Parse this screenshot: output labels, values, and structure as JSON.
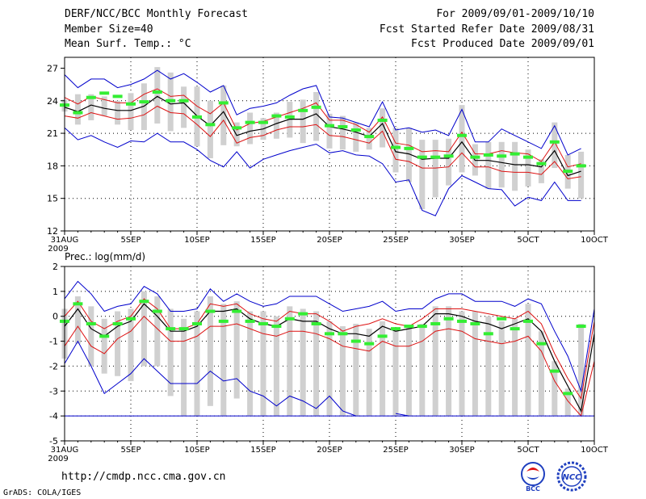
{
  "header": {
    "title": "DERF/NCC/BCC Monthly Forecast",
    "member": "Member Size=40",
    "variable": "Mean Surf. Temp.: °C",
    "period": "For 2009/09/01-2009/10/10",
    "started": "Fcst Started Refer Date 2009/08/31",
    "produced": "Fcst Produced Date 2009/09/01"
  },
  "footer": {
    "url": "http://cmdp.ncc.cma.gov.cn",
    "credit": "GrADS: COLA/IGES",
    "logo_bcc": "BCC",
    "logo_ncc": "NCC"
  },
  "colors": {
    "box": "#d0d0d0",
    "median": "#33ee33",
    "mean": "#000000",
    "std": "#dd1111",
    "envelope": "#0000cc",
    "grid": "#000000"
  },
  "chart_data": [
    {
      "type": "line",
      "title": "Mean Surf. Temp.",
      "ylim": [
        12,
        28
      ],
      "yticks": [
        12,
        15,
        18,
        21,
        24,
        27
      ],
      "xtick_labels": [
        "31AUG\n2009",
        "5SEP",
        "10SEP",
        "15SEP",
        "20SEP",
        "25SEP",
        "30SEP",
        "5OCT",
        "10OCT"
      ],
      "x_days": [
        0,
        1,
        2,
        3,
        4,
        5,
        6,
        7,
        8,
        9,
        10,
        11,
        12,
        13,
        14,
        15,
        16,
        17,
        18,
        19,
        20,
        21,
        22,
        23,
        24,
        25,
        26,
        27,
        28,
        29,
        30,
        31,
        32,
        33,
        34,
        35,
        36,
        37,
        38,
        39,
        40
      ],
      "series": [
        {
          "name": "envelope-max",
          "values": [
            26.4,
            25.2,
            26.0,
            26.0,
            25.2,
            25.5,
            26.0,
            26.8,
            26.0,
            26.5,
            25.7,
            24.8,
            25.4,
            22.7,
            23.3,
            23.5,
            23.8,
            24.5,
            25.1,
            25.4,
            22.5,
            22.4,
            22.0,
            21.6,
            23.9,
            21.3,
            21.5,
            21.1,
            21.3,
            20.8,
            23.2,
            20.2,
            20.2,
            21.4,
            20.8,
            20.2,
            19.6,
            21.7,
            19.0,
            19.6,
            null
          ]
        },
        {
          "name": "std-upper",
          "values": [
            24.3,
            23.7,
            24.4,
            24.1,
            23.8,
            23.8,
            24.6,
            25.1,
            24.4,
            24.5,
            23.5,
            22.8,
            23.8,
            21.3,
            21.9,
            22.1,
            22.5,
            22.9,
            23.3,
            23.8,
            22.2,
            22.2,
            21.8,
            21.1,
            22.5,
            20.1,
            19.9,
            19.3,
            19.4,
            19.3,
            21.1,
            19.1,
            19.1,
            19.4,
            19.2,
            19.1,
            18.4,
            20.2,
            17.9,
            18.2,
            null
          ]
        },
        {
          "name": "mean",
          "values": [
            23.4,
            23.0,
            23.6,
            23.3,
            23.1,
            23.1,
            23.5,
            24.4,
            23.7,
            23.8,
            22.6,
            21.7,
            23.0,
            20.8,
            21.2,
            21.4,
            21.9,
            22.3,
            22.3,
            22.8,
            21.6,
            21.4,
            21.1,
            20.7,
            21.9,
            19.3,
            19.1,
            18.6,
            18.7,
            18.7,
            20.2,
            18.5,
            18.5,
            18.3,
            18.1,
            18.1,
            17.9,
            19.4,
            17.1,
            17.5,
            null
          ]
        },
        {
          "name": "std-lower",
          "values": [
            22.6,
            22.4,
            22.9,
            22.6,
            22.3,
            22.4,
            22.7,
            23.5,
            22.9,
            22.8,
            21.8,
            20.7,
            22.2,
            20.1,
            20.6,
            20.8,
            21.3,
            21.6,
            21.6,
            21.8,
            20.8,
            20.7,
            20.4,
            20.1,
            21.2,
            18.6,
            18.4,
            17.8,
            17.8,
            17.9,
            19.2,
            17.9,
            17.9,
            17.5,
            17.4,
            17.4,
            17.2,
            18.4,
            16.8,
            17.0,
            null
          ]
        },
        {
          "name": "envelope-min",
          "values": [
            21.5,
            20.4,
            20.8,
            20.2,
            19.7,
            20.3,
            20.2,
            21.0,
            20.2,
            20.2,
            19.5,
            18.5,
            17.9,
            19.3,
            17.8,
            18.6,
            19.0,
            19.4,
            19.7,
            20.0,
            19.2,
            19.4,
            19.0,
            18.9,
            18.2,
            16.5,
            16.7,
            13.9,
            13.4,
            15.9,
            17.1,
            16.5,
            15.9,
            15.8,
            14.3,
            15.1,
            14.8,
            16.5,
            14.8,
            14.8,
            null
          ]
        },
        {
          "name": "median",
          "values": [
            23.6,
            22.9,
            24.3,
            24.7,
            24.4,
            23.7,
            23.9,
            24.8,
            24.0,
            24.0,
            22.5,
            21.8,
            23.8,
            21.5,
            22.0,
            22.0,
            22.6,
            22.5,
            23.1,
            23.4,
            21.7,
            21.6,
            21.3,
            20.7,
            22.2,
            19.7,
            19.6,
            18.8,
            18.8,
            18.9,
            20.8,
            18.8,
            19.0,
            18.9,
            19.1,
            18.8,
            18.2,
            20.2,
            17.5,
            18.0,
            null
          ]
        }
      ],
      "boxes": [
        [
          23.0,
          24.1
        ],
        [
          21.8,
          24.6
        ],
        [
          22.2,
          24.6
        ],
        [
          22.6,
          24.4
        ],
        [
          21.8,
          24.0
        ],
        [
          21.3,
          24.7
        ],
        [
          21.3,
          25.6
        ],
        [
          21.9,
          27.1
        ],
        [
          21.2,
          26.6
        ],
        [
          21.5,
          25.3
        ],
        [
          19.8,
          25.3
        ],
        [
          18.7,
          24.0
        ],
        [
          19.9,
          25.4
        ],
        [
          19.8,
          22.0
        ],
        [
          20.0,
          22.9
        ],
        [
          20.4,
          22.4
        ],
        [
          20.5,
          22.9
        ],
        [
          20.6,
          23.9
        ],
        [
          20.1,
          24.1
        ],
        [
          20.3,
          24.8
        ],
        [
          19.6,
          22.8
        ],
        [
          19.5,
          22.6
        ],
        [
          19.3,
          22.0
        ],
        [
          19.5,
          21.5
        ],
        [
          19.7,
          23.3
        ],
        [
          17.4,
          21.5
        ],
        [
          16.5,
          21.5
        ],
        [
          14.0,
          20.4
        ],
        [
          15.1,
          20.4
        ],
        [
          16.2,
          20.5
        ],
        [
          17.4,
          23.6
        ],
        [
          17.1,
          20.0
        ],
        [
          15.9,
          20.2
        ],
        [
          16.0,
          20.2
        ],
        [
          15.7,
          20.2
        ],
        [
          16.1,
          19.5
        ],
        [
          16.4,
          18.6
        ],
        [
          17.8,
          22.0
        ],
        [
          15.9,
          19.0
        ],
        [
          15.0,
          19.3
        ],
        [
          null,
          null
        ]
      ]
    },
    {
      "type": "line",
      "title": "Prec.: log(mm/d)",
      "ylim": [
        -5,
        2
      ],
      "yticks": [
        -5,
        -4,
        -3,
        -2,
        -1,
        0,
        1,
        2
      ],
      "xtick_labels": [
        "31AUG\n2009",
        "5SEP",
        "10SEP",
        "15SEP",
        "20SEP",
        "25SEP",
        "30SEP",
        "5OCT",
        "10OCT"
      ],
      "x_days": [
        0,
        1,
        2,
        3,
        4,
        5,
        6,
        7,
        8,
        9,
        10,
        11,
        12,
        13,
        14,
        15,
        16,
        17,
        18,
        19,
        20,
        21,
        22,
        23,
        24,
        25,
        26,
        27,
        28,
        29,
        30,
        31,
        32,
        33,
        34,
        35,
        36,
        37,
        38,
        39,
        40
      ],
      "series": [
        {
          "name": "envelope-max",
          "values": [
            0.7,
            1.4,
            0.9,
            0.2,
            0.4,
            0.5,
            1.2,
            0.9,
            0.2,
            0.2,
            0.3,
            1.1,
            0.6,
            0.9,
            0.6,
            0.4,
            0.5,
            0.8,
            0.8,
            0.8,
            0.5,
            0.2,
            0.3,
            0.4,
            0.6,
            0.2,
            0.3,
            0.3,
            0.7,
            0.9,
            0.9,
            0.6,
            0.6,
            0.6,
            0.4,
            0.7,
            0.5,
            -0.6,
            -1.6,
            -3.0,
            0.3
          ]
        },
        {
          "name": "std-upper",
          "values": [
            0.0,
            0.6,
            -0.2,
            -0.5,
            -0.2,
            0.0,
            0.7,
            0.3,
            -0.5,
            -0.5,
            -0.3,
            0.5,
            0.4,
            0.5,
            0.1,
            -0.1,
            -0.2,
            0.2,
            0.1,
            0.1,
            -0.2,
            -0.6,
            -0.4,
            -0.3,
            -0.1,
            -0.3,
            -0.4,
            -0.1,
            0.3,
            0.3,
            0.3,
            0.2,
            0.1,
            0.0,
            -0.1,
            0.2,
            -0.3,
            -1.5,
            -2.5,
            -3.3,
            -0.2
          ]
        },
        {
          "name": "mean",
          "values": [
            -0.4,
            0.3,
            -0.5,
            -0.8,
            -0.4,
            -0.2,
            0.5,
            0.0,
            -0.6,
            -0.6,
            -0.4,
            0.2,
            0.2,
            0.3,
            -0.1,
            -0.3,
            -0.4,
            -0.1,
            -0.2,
            -0.2,
            -0.5,
            -0.7,
            -0.7,
            -0.8,
            -0.4,
            -0.6,
            -0.5,
            -0.4,
            0.1,
            0.1,
            0.0,
            -0.2,
            -0.3,
            -0.5,
            -0.3,
            -0.1,
            -0.6,
            -1.8,
            -2.8,
            -3.8,
            -0.7
          ]
        },
        {
          "name": "std-lower",
          "values": [
            -1.2,
            -0.4,
            -1.2,
            -1.5,
            -0.9,
            -0.6,
            0.0,
            -0.5,
            -1.0,
            -1.0,
            -0.8,
            -0.4,
            -0.4,
            -0.3,
            -0.5,
            -0.7,
            -0.8,
            -0.6,
            -0.6,
            -0.7,
            -0.9,
            -1.2,
            -1.3,
            -1.4,
            -1.0,
            -1.2,
            -1.2,
            -1.0,
            -0.6,
            -0.5,
            -0.6,
            -0.9,
            -1.0,
            -1.1,
            -1.0,
            -0.8,
            -1.4,
            -2.6,
            -3.4,
            -4.0,
            -1.8
          ]
        },
        {
          "name": "envelope-min",
          "values": [
            -1.9,
            -1.0,
            -2.0,
            -3.1,
            -2.7,
            -2.3,
            -1.7,
            -2.2,
            -2.7,
            -2.7,
            -2.7,
            -2.2,
            -2.6,
            -2.5,
            -3.0,
            -3.2,
            -3.6,
            -3.2,
            -3.4,
            -3.7,
            -3.2,
            -3.8,
            -4.0,
            null,
            null,
            -3.9,
            -4.0,
            null,
            null,
            null,
            null,
            null,
            null,
            null,
            null,
            null,
            null,
            null,
            null,
            null,
            null
          ]
        },
        {
          "name": "median",
          "values": [
            -0.2,
            0.5,
            -0.3,
            -0.8,
            -0.3,
            -0.1,
            0.6,
            0.2,
            -0.5,
            -0.5,
            -0.3,
            0.2,
            -0.2,
            0.2,
            -0.2,
            -0.3,
            -0.4,
            -0.1,
            0.1,
            -0.3,
            -0.7,
            -0.7,
            -1.0,
            -1.1,
            -0.8,
            -0.5,
            -0.4,
            -0.4,
            -0.3,
            -0.1,
            -0.2,
            -0.3,
            -0.7,
            -0.1,
            -0.5,
            -0.2,
            -1.1,
            -2.2,
            -3.1,
            -0.4,
            null
          ]
        },
        {
          "name": "floor",
          "values": [
            -4,
            -4,
            -4,
            -4,
            -4,
            -4,
            -4,
            -4,
            -4,
            -4,
            -4,
            -4,
            -4,
            -4,
            -4,
            -4,
            -4,
            -4,
            -4,
            -4,
            -4,
            -4,
            -4,
            -4,
            -4,
            -4,
            -4,
            -4,
            -4,
            -4,
            -4,
            -4,
            -4,
            -4,
            -4,
            -4,
            -4,
            -4,
            -4,
            -4,
            -4
          ]
        }
      ],
      "boxes": [
        [
          -1.7,
          0.3
        ],
        [
          -1.1,
          0.8
        ],
        [
          -2.0,
          0.4
        ],
        [
          -2.3,
          -0.1
        ],
        [
          -2.4,
          0.2
        ],
        [
          -2.6,
          0.3
        ],
        [
          -2.0,
          1.0
        ],
        [
          -2.0,
          0.8
        ],
        [
          -3.2,
          0.3
        ],
        [
          -4.0,
          -0.1
        ],
        [
          -4.0,
          0.2
        ],
        [
          -3.6,
          0.8
        ],
        [
          -4.0,
          0.5
        ],
        [
          -3.3,
          0.6
        ],
        [
          -4.0,
          0.2
        ],
        [
          -4.0,
          0.2
        ],
        [
          -4.0,
          0.0
        ],
        [
          -4.0,
          0.4
        ],
        [
          -4.0,
          0.3
        ],
        [
          -4.0,
          0.2
        ],
        [
          -4.0,
          -0.2
        ],
        [
          -4.0,
          -0.4
        ],
        [
          -4.0,
          -0.3
        ],
        [
          -4.0,
          -0.5
        ],
        [
          -4.0,
          -0.2
        ],
        [
          -4.0,
          -0.5
        ],
        [
          -4.0,
          -0.4
        ],
        [
          -4.0,
          -0.3
        ],
        [
          -4.0,
          0.4
        ],
        [
          -4.0,
          0.4
        ],
        [
          -4.0,
          0.2
        ],
        [
          -4.0,
          0.2
        ],
        [
          -4.0,
          0.0
        ],
        [
          -4.0,
          -0.2
        ],
        [
          -4.0,
          -0.1
        ],
        [
          -4.0,
          0.5
        ],
        [
          -4.0,
          -0.6
        ],
        [
          -4.0,
          -1.8
        ],
        [
          -4.0,
          -2.9
        ],
        [
          -4.0,
          -0.3
        ],
        [
          null,
          null
        ]
      ]
    }
  ]
}
